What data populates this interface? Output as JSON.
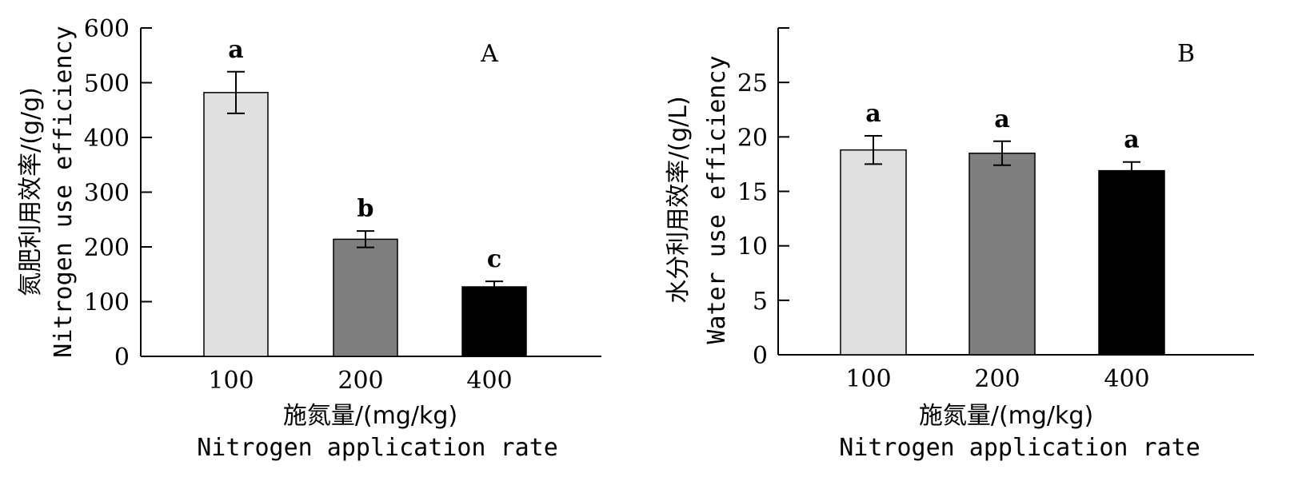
{
  "chart_data": [
    {
      "type": "bar",
      "panel_label": "A",
      "categories": [
        "100",
        "200",
        "400"
      ],
      "values": [
        482,
        214,
        127
      ],
      "errors": [
        38,
        15,
        10
      ],
      "significance": [
        "a",
        "b",
        "c"
      ],
      "colors": [
        "#e0e0e0",
        "#7f7f7f",
        "#000000"
      ],
      "ylabel_cn": "氮肥利用效率/(g/g)",
      "ylabel_en": "Nitrogen use efficiency",
      "xlabel_cn": "施氮量/(mg/kg)",
      "xlabel_en": "Nitrogen application rate",
      "ylim": [
        0,
        600
      ],
      "yticks": [
        "0",
        "100",
        "200",
        "300",
        "400",
        "500",
        "600"
      ]
    },
    {
      "type": "bar",
      "panel_label": "B",
      "categories": [
        "100",
        "200",
        "400"
      ],
      "values": [
        18.8,
        18.5,
        16.9
      ],
      "errors": [
        1.3,
        1.1,
        0.8
      ],
      "significance": [
        "a",
        "a",
        "a"
      ],
      "colors": [
        "#e0e0e0",
        "#7f7f7f",
        "#000000"
      ],
      "ylabel_cn": "水分利用效率/(g/L)",
      "ylabel_en": "Water use efficiency",
      "xlabel_cn": "施氮量/(mg/kg)",
      "xlabel_en": "Nitrogen application rate",
      "ylim": [
        0,
        30
      ],
      "yticks": [
        "0",
        "5",
        "10",
        "15",
        "20",
        "25"
      ]
    }
  ]
}
